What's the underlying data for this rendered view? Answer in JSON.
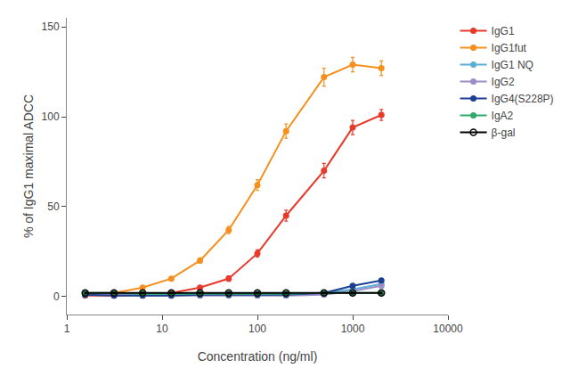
{
  "chart_data": {
    "type": "line",
    "xlabel": "Concentration (ng/ml)",
    "ylabel": "% of IgG1 maximal ADCC",
    "log": "x",
    "xlim": [
      1,
      10000
    ],
    "xticks": [
      1,
      10,
      100,
      1000,
      10000
    ],
    "ylim": [
      -10,
      155
    ],
    "yticks": [
      0,
      50,
      100,
      150
    ],
    "grid": false,
    "legend": "right",
    "x": [
      1.56,
      3.13,
      6.25,
      12.5,
      25,
      50,
      100,
      200,
      500,
      1000,
      2000
    ],
    "series": [
      {
        "name": "IgG1",
        "color": "#E8392A",
        "marker": "circle",
        "values": [
          0.5,
          0.5,
          1,
          2,
          5,
          10,
          24,
          45,
          70,
          94,
          101
        ],
        "yerr": [
          0.5,
          0.5,
          0.5,
          0.5,
          1,
          1.5,
          2,
          3,
          4,
          4,
          3
        ]
      },
      {
        "name": "IgG1fut",
        "color": "#F5901E",
        "marker": "circle",
        "values": [
          1,
          2,
          5,
          10,
          20,
          37,
          62,
          92,
          122,
          129,
          127
        ],
        "yerr": [
          0.5,
          0.5,
          1,
          1,
          1.5,
          2,
          3,
          4,
          5,
          4,
          4
        ]
      },
      {
        "name": "IgG1 NQ",
        "color": "#5BAED4",
        "marker": "circle",
        "values": [
          1,
          1,
          1,
          1,
          1,
          1,
          1,
          1,
          2,
          4,
          7
        ],
        "yerr": [
          0.5,
          0.5,
          0.5,
          0.5,
          0.5,
          0.5,
          0.5,
          0.5,
          1,
          1,
          1
        ]
      },
      {
        "name": "IgG2",
        "color": "#9B8DC8",
        "marker": "circle",
        "values": [
          1,
          1,
          0.5,
          0.5,
          0.5,
          0.5,
          0.5,
          0.5,
          1,
          3,
          6
        ],
        "yerr": [
          0.5,
          0.5,
          0.5,
          0.5,
          0.5,
          0.5,
          0.5,
          0.5,
          0.5,
          1,
          1
        ]
      },
      {
        "name": "IgG4(S228P)",
        "color": "#1C3F94",
        "marker": "circle",
        "values": [
          1,
          0.5,
          0.5,
          0.5,
          1,
          1,
          1,
          1,
          2,
          6,
          9
        ],
        "yerr": [
          0.5,
          0.5,
          0.5,
          0.5,
          0.5,
          0.5,
          0.5,
          0.5,
          0.5,
          1,
          1
        ]
      },
      {
        "name": "IgA2",
        "color": "#2EAA6E",
        "marker": "circle",
        "values": [
          2,
          2,
          1.5,
          1.5,
          1.5,
          1.5,
          1.5,
          1.5,
          2,
          2,
          2
        ],
        "yerr": [
          0.5,
          0.5,
          0.5,
          0.5,
          0.5,
          0.5,
          0.5,
          0.5,
          0.5,
          0.5,
          0.5
        ]
      },
      {
        "name": "β-gal",
        "color": "#000000",
        "marker": "circle-open",
        "values": [
          2,
          2,
          2,
          2,
          2,
          2,
          2,
          2,
          2,
          2,
          2
        ],
        "yerr": [
          0.5,
          0.5,
          0.5,
          0.5,
          0.5,
          0.5,
          0.5,
          0.5,
          0.5,
          0.5,
          0.5
        ]
      }
    ]
  }
}
